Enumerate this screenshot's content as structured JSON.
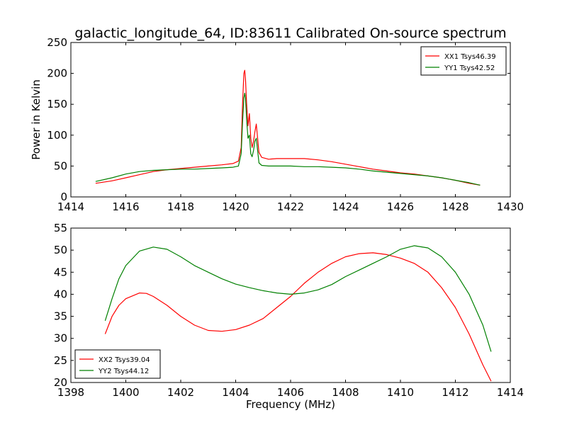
{
  "chart_data": [
    {
      "type": "line",
      "title": "galactic_longitude_64, ID:83611 Calibrated On-source spectrum",
      "xlabel": "",
      "ylabel": "Power in Kelvin",
      "xlim": [
        1414,
        1430
      ],
      "ylim": [
        0,
        250
      ],
      "xticks": [
        1414,
        1416,
        1418,
        1420,
        1422,
        1424,
        1426,
        1428,
        1430
      ],
      "yticks": [
        0,
        50,
        100,
        150,
        200,
        250
      ],
      "grid": false,
      "legend_position": "top-right",
      "series": [
        {
          "name": "XX1 Tsys46.39",
          "color": "#ff0000",
          "points": [
            [
              1414.9,
              22
            ],
            [
              1415.5,
              26
            ],
            [
              1416.0,
              31
            ],
            [
              1416.5,
              36
            ],
            [
              1417.0,
              41
            ],
            [
              1417.5,
              44
            ],
            [
              1418.0,
              46
            ],
            [
              1418.5,
              48
            ],
            [
              1419.0,
              50
            ],
            [
              1419.5,
              52
            ],
            [
              1419.9,
              54
            ],
            [
              1420.1,
              58
            ],
            [
              1420.2,
              80
            ],
            [
              1420.25,
              150
            ],
            [
              1420.3,
              200
            ],
            [
              1420.33,
              205
            ],
            [
              1420.36,
              190
            ],
            [
              1420.4,
              150
            ],
            [
              1420.45,
              115
            ],
            [
              1420.5,
              135
            ],
            [
              1420.55,
              95
            ],
            [
              1420.6,
              80
            ],
            [
              1420.65,
              90
            ],
            [
              1420.7,
              105
            ],
            [
              1420.75,
              118
            ],
            [
              1420.8,
              95
            ],
            [
              1420.85,
              72
            ],
            [
              1420.95,
              64
            ],
            [
              1421.2,
              61
            ],
            [
              1421.5,
              62
            ],
            [
              1422.0,
              62
            ],
            [
              1422.5,
              62
            ],
            [
              1423.0,
              60
            ],
            [
              1423.5,
              57
            ],
            [
              1424.0,
              53
            ],
            [
              1424.5,
              49
            ],
            [
              1425.0,
              45
            ],
            [
              1425.5,
              42
            ],
            [
              1426.0,
              39
            ],
            [
              1426.5,
              37
            ],
            [
              1427.0,
              34
            ],
            [
              1427.5,
              31
            ],
            [
              1428.0,
              27
            ],
            [
              1428.5,
              22
            ],
            [
              1428.9,
              19
            ]
          ]
        },
        {
          "name": "YY1 Tsys42.52",
          "color": "#008000",
          "points": [
            [
              1414.9,
              25
            ],
            [
              1415.5,
              31
            ],
            [
              1416.0,
              37
            ],
            [
              1416.5,
              41
            ],
            [
              1417.0,
              43
            ],
            [
              1417.5,
              44
            ],
            [
              1418.0,
              45
            ],
            [
              1418.5,
              45
            ],
            [
              1419.0,
              46
            ],
            [
              1419.5,
              47
            ],
            [
              1419.9,
              48
            ],
            [
              1420.1,
              50
            ],
            [
              1420.2,
              70
            ],
            [
              1420.25,
              120
            ],
            [
              1420.3,
              160
            ],
            [
              1420.33,
              168
            ],
            [
              1420.36,
              160
            ],
            [
              1420.4,
              125
            ],
            [
              1420.45,
              95
            ],
            [
              1420.5,
              100
            ],
            [
              1420.55,
              70
            ],
            [
              1420.6,
              65
            ],
            [
              1420.65,
              75
            ],
            [
              1420.7,
              90
            ],
            [
              1420.75,
              95
            ],
            [
              1420.8,
              75
            ],
            [
              1420.85,
              55
            ],
            [
              1420.95,
              51
            ],
            [
              1421.2,
              50
            ],
            [
              1421.5,
              50
            ],
            [
              1422.0,
              50
            ],
            [
              1422.5,
              49
            ],
            [
              1423.0,
              49
            ],
            [
              1423.5,
              48
            ],
            [
              1424.0,
              47
            ],
            [
              1424.5,
              45
            ],
            [
              1425.0,
              42
            ],
            [
              1425.5,
              40
            ],
            [
              1426.0,
              38
            ],
            [
              1426.5,
              36
            ],
            [
              1427.0,
              34
            ],
            [
              1427.5,
              31
            ],
            [
              1428.0,
              27
            ],
            [
              1428.5,
              23
            ],
            [
              1428.9,
              19
            ]
          ]
        }
      ]
    },
    {
      "type": "line",
      "title": "",
      "xlabel": "Frequency (MHz)",
      "ylabel": "",
      "xlim": [
        1398,
        1414
      ],
      "ylim": [
        20,
        55
      ],
      "xticks": [
        1398,
        1400,
        1402,
        1404,
        1406,
        1408,
        1410,
        1412,
        1414
      ],
      "yticks": [
        20,
        25,
        30,
        35,
        40,
        45,
        50,
        55
      ],
      "grid": false,
      "legend_position": "bottom-left",
      "series": [
        {
          "name": "XX2 Tsys39.04",
          "color": "#ff0000",
          "points": [
            [
              1399.25,
              31
            ],
            [
              1399.5,
              35
            ],
            [
              1399.75,
              37.5
            ],
            [
              1400.0,
              39
            ],
            [
              1400.5,
              40.3
            ],
            [
              1400.75,
              40.2
            ],
            [
              1401.0,
              39.5
            ],
            [
              1401.5,
              37.5
            ],
            [
              1402.0,
              35
            ],
            [
              1402.5,
              33
            ],
            [
              1403.0,
              31.8
            ],
            [
              1403.5,
              31.6
            ],
            [
              1404.0,
              32
            ],
            [
              1404.5,
              33
            ],
            [
              1405.0,
              34.5
            ],
            [
              1405.5,
              37
            ],
            [
              1406.0,
              39.5
            ],
            [
              1406.5,
              42.5
            ],
            [
              1407.0,
              45
            ],
            [
              1407.5,
              47
            ],
            [
              1408.0,
              48.5
            ],
            [
              1408.5,
              49.2
            ],
            [
              1409.0,
              49.4
            ],
            [
              1409.5,
              49
            ],
            [
              1410.0,
              48.2
            ],
            [
              1410.5,
              47
            ],
            [
              1411.0,
              45
            ],
            [
              1411.5,
              41.5
            ],
            [
              1412.0,
              37
            ],
            [
              1412.5,
              31
            ],
            [
              1413.0,
              24
            ],
            [
              1413.3,
              20.3
            ]
          ]
        },
        {
          "name": "YY2 Tsys44.12",
          "color": "#008000",
          "points": [
            [
              1399.25,
              34
            ],
            [
              1399.5,
              39
            ],
            [
              1399.75,
              43.5
            ],
            [
              1400.0,
              46.5
            ],
            [
              1400.5,
              49.8
            ],
            [
              1401.0,
              50.7
            ],
            [
              1401.5,
              50.2
            ],
            [
              1402.0,
              48.5
            ],
            [
              1402.5,
              46.5
            ],
            [
              1403.0,
              45
            ],
            [
              1403.5,
              43.5
            ],
            [
              1404.0,
              42.3
            ],
            [
              1404.5,
              41.5
            ],
            [
              1405.0,
              40.8
            ],
            [
              1405.5,
              40.3
            ],
            [
              1406.0,
              40
            ],
            [
              1406.5,
              40.3
            ],
            [
              1407.0,
              41
            ],
            [
              1407.5,
              42.2
            ],
            [
              1408.0,
              44
            ],
            [
              1408.5,
              45.5
            ],
            [
              1409.0,
              47
            ],
            [
              1409.5,
              48.5
            ],
            [
              1410.0,
              50.2
            ],
            [
              1410.5,
              51
            ],
            [
              1411.0,
              50.5
            ],
            [
              1411.5,
              48.5
            ],
            [
              1412.0,
              45
            ],
            [
              1412.5,
              40
            ],
            [
              1413.0,
              33
            ],
            [
              1413.3,
              27
            ]
          ]
        }
      ]
    }
  ]
}
